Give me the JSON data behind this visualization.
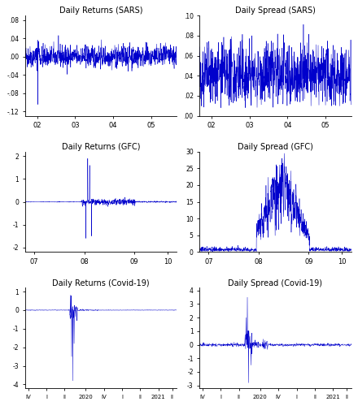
{
  "titles": [
    "Daily Returns (SARS)",
    "Daily Spread (SARS)",
    "Daily Returns (GFC)",
    "Daily Spread (GFC)",
    "Daily Returns (Covid-19)",
    "Daily Spread (Covid-19)"
  ],
  "sars_returns_ylim": [
    -0.13,
    0.09
  ],
  "sars_spread_ylim": [
    0.0,
    0.1
  ],
  "sars_returns_yticks": [
    -0.12,
    -0.08,
    -0.04,
    0.0,
    0.04,
    0.08
  ],
  "sars_returns_yticklabels": [
    "-.12",
    "-.08",
    "-.04",
    ".00",
    ".04",
    ".08"
  ],
  "sars_spread_yticks": [
    0.0,
    0.02,
    0.04,
    0.06,
    0.08,
    0.1
  ],
  "sars_spread_yticklabels": [
    ".00",
    ".02",
    ".04",
    ".06",
    ".08",
    ".10"
  ],
  "gfc_returns_ylim": [
    -2.2,
    2.2
  ],
  "gfc_spread_ylim": [
    0.0,
    30
  ],
  "gfc_returns_yticks": [
    -2.0,
    -1.0,
    0.0,
    1.0,
    2.0
  ],
  "gfc_returns_yticklabels": [
    "-2",
    "-1",
    "0",
    "1",
    "2"
  ],
  "gfc_spread_yticks": [
    0,
    5,
    10,
    15,
    20,
    25,
    30
  ],
  "gfc_spread_yticklabels": [
    "0",
    "5",
    "10",
    "15",
    "20",
    "25",
    "30"
  ],
  "covid_returns_ylim": [
    -4.2,
    1.2
  ],
  "covid_spread_ylim": [
    -3.2,
    4.2
  ],
  "covid_returns_yticks": [
    -4,
    -3,
    -2,
    -1,
    0,
    1
  ],
  "covid_returns_yticklabels": [
    "-4",
    "-3",
    "-2",
    "-1",
    "0",
    "1"
  ],
  "covid_spread_yticks": [
    -3,
    -2,
    -1,
    0,
    1,
    2,
    3,
    4
  ],
  "covid_spread_yticklabels": [
    "-3",
    "-2",
    "-1",
    "0",
    "1",
    "2",
    "3",
    "4"
  ],
  "sars_xticks": [
    0.08,
    0.33,
    0.58,
    0.83
  ],
  "sars_xticklabels": [
    "02",
    "03",
    "04",
    "05"
  ],
  "gfc_xticks": [
    0.06,
    0.39,
    0.72,
    0.94
  ],
  "gfc_xticklabels": [
    "07",
    "08",
    "09",
    "10"
  ],
  "covid_xticks": [
    0.02,
    0.14,
    0.26,
    0.4,
    0.52,
    0.64,
    0.76,
    0.88,
    0.97
  ],
  "covid_xticklabels": [
    "IV",
    "I",
    "II",
    "2020",
    "IV",
    "I",
    "II",
    "2021",
    "II"
  ],
  "line_color": "#0000CC",
  "bg_color": "#ffffff",
  "fig_bg": "#ffffff",
  "seed": 42
}
